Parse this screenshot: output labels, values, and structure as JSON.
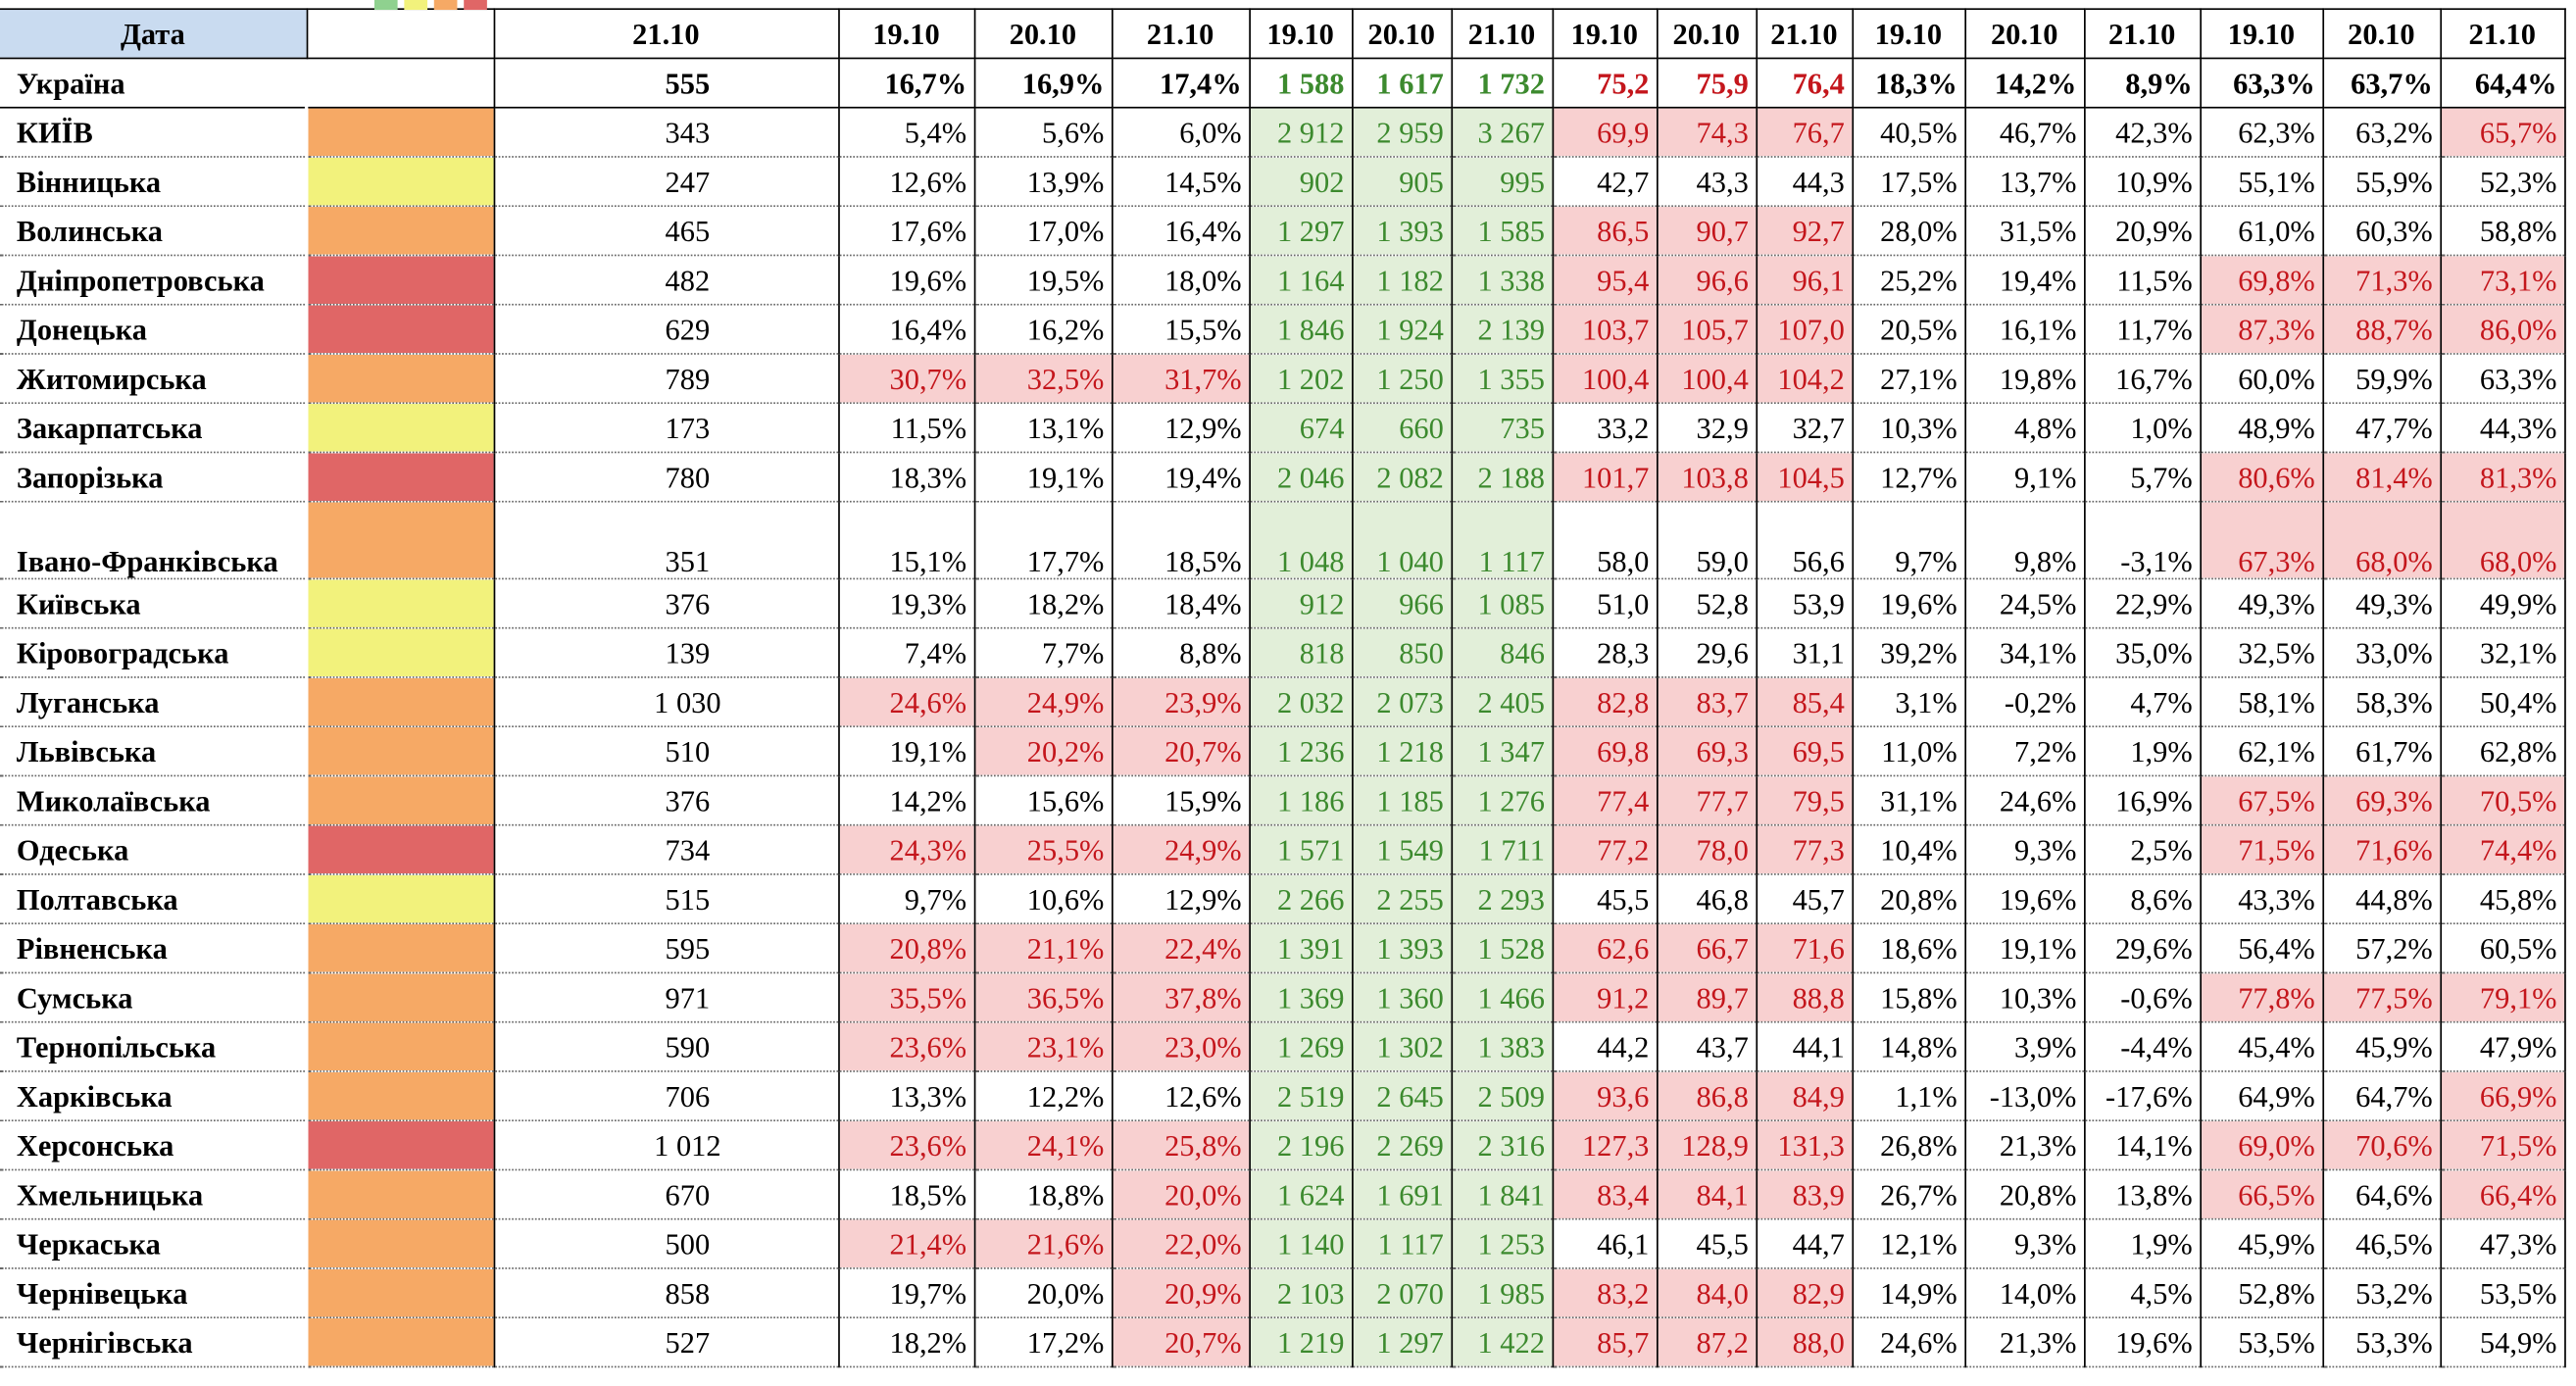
{
  "header": {
    "labels": [
      "Дата",
      "21.10",
      "19.10",
      "20.10",
      "21.10",
      "19.10",
      "20.10",
      "21.10",
      "19.10",
      "20.10",
      "21.10",
      "19.10",
      "20.10",
      "21.10",
      "19.10",
      "20.10",
      "21.10"
    ]
  },
  "total": {
    "name": "Україна",
    "cells": [
      "555",
      "16,7%",
      "16,9%",
      "17,4%",
      "1 588",
      "1 617",
      "1 732",
      "75,2",
      "75,9",
      "76,4",
      "18,3%",
      "14,2%",
      "8,9%",
      "63,3%",
      "63,7%",
      "64,4%"
    ]
  },
  "rows": [
    {
      "name": "КИЇВ",
      "level_color": "#f6a965",
      "cells": [
        "343",
        "5,4%",
        "5,6%",
        "6,0%",
        "2 912",
        "2 959",
        "3 267",
        "69,9",
        "74,3",
        "76,7",
        "40,5%",
        "46,7%",
        "42,3%",
        "62,3%",
        "63,2%",
        "65,7%"
      ],
      "highlight": [
        7,
        8,
        9,
        15
      ]
    },
    {
      "name": "Вінницька",
      "level_color": "#f2f27c",
      "cells": [
        "247",
        "12,6%",
        "13,9%",
        "14,5%",
        "902",
        "905",
        "995",
        "42,7",
        "43,3",
        "44,3",
        "17,5%",
        "13,7%",
        "10,9%",
        "55,1%",
        "55,9%",
        "52,3%"
      ],
      "highlight": []
    },
    {
      "name": "Волинська",
      "level_color": "#f6a965",
      "cells": [
        "465",
        "17,6%",
        "17,0%",
        "16,4%",
        "1 297",
        "1 393",
        "1 585",
        "86,5",
        "90,7",
        "92,7",
        "28,0%",
        "31,5%",
        "20,9%",
        "61,0%",
        "60,3%",
        "58,8%"
      ],
      "highlight": [
        7,
        8,
        9
      ]
    },
    {
      "name": "Дніпропетровська",
      "level_color": "#e06666",
      "cells": [
        "482",
        "19,6%",
        "19,5%",
        "18,0%",
        "1 164",
        "1 182",
        "1 338",
        "95,4",
        "96,6",
        "96,1",
        "25,2%",
        "19,4%",
        "11,5%",
        "69,8%",
        "71,3%",
        "73,1%"
      ],
      "highlight": [
        7,
        8,
        9,
        13,
        14,
        15
      ]
    },
    {
      "name": "Донецька",
      "level_color": "#e06666",
      "cells": [
        "629",
        "16,4%",
        "16,2%",
        "15,5%",
        "1 846",
        "1 924",
        "2 139",
        "103,7",
        "105,7",
        "107,0",
        "20,5%",
        "16,1%",
        "11,7%",
        "87,3%",
        "88,7%",
        "86,0%"
      ],
      "highlight": [
        7,
        8,
        9,
        13,
        14,
        15
      ]
    },
    {
      "name": "Житомирська",
      "level_color": "#f6a965",
      "cells": [
        "789",
        "30,7%",
        "32,5%",
        "31,7%",
        "1 202",
        "1 250",
        "1 355",
        "100,4",
        "100,4",
        "104,2",
        "27,1%",
        "19,8%",
        "16,7%",
        "60,0%",
        "59,9%",
        "63,3%"
      ],
      "highlight": [
        1,
        2,
        3,
        7,
        8,
        9
      ]
    },
    {
      "name": "Закарпатська",
      "level_color": "#f2f27c",
      "cells": [
        "173",
        "11,5%",
        "13,1%",
        "12,9%",
        "674",
        "660",
        "735",
        "33,2",
        "32,9",
        "32,7",
        "10,3%",
        "4,8%",
        "1,0%",
        "48,9%",
        "47,7%",
        "44,3%"
      ],
      "highlight": []
    },
    {
      "name": "Запорізька",
      "level_color": "#e06666",
      "cells": [
        "780",
        "18,3%",
        "19,1%",
        "19,4%",
        "2 046",
        "2 082",
        "2 188",
        "101,7",
        "103,8",
        "104,5",
        "12,7%",
        "9,1%",
        "5,7%",
        "80,6%",
        "81,4%",
        "81,3%"
      ],
      "highlight": [
        7,
        8,
        9,
        13,
        14,
        15
      ]
    },
    {
      "name": "Івано-Франківська",
      "level_color": "#f6a965",
      "cells": [
        "351",
        "15,1%",
        "17,7%",
        "18,5%",
        "1 048",
        "1 040",
        "1 117",
        "58,0",
        "59,0",
        "56,6",
        "9,7%",
        "9,8%",
        "-3,1%",
        "67,3%",
        "68,0%",
        "68,0%"
      ],
      "highlight": [
        13,
        14,
        15
      ]
    },
    {
      "name": "Київська",
      "level_color": "#f2f27c",
      "cells": [
        "376",
        "19,3%",
        "18,2%",
        "18,4%",
        "912",
        "966",
        "1 085",
        "51,0",
        "52,8",
        "53,9",
        "19,6%",
        "24,5%",
        "22,9%",
        "49,3%",
        "49,3%",
        "49,9%"
      ],
      "highlight": []
    },
    {
      "name": "Кіровоградська",
      "level_color": "#f2f27c",
      "cells": [
        "139",
        "7,4%",
        "7,7%",
        "8,8%",
        "818",
        "850",
        "846",
        "28,3",
        "29,6",
        "31,1",
        "39,2%",
        "34,1%",
        "35,0%",
        "32,5%",
        "33,0%",
        "32,1%"
      ],
      "highlight": []
    },
    {
      "name": "Луганська",
      "level_color": "#f6a965",
      "cells": [
        "1 030",
        "24,6%",
        "24,9%",
        "23,9%",
        "2 032",
        "2 073",
        "2 405",
        "82,8",
        "83,7",
        "85,4",
        "3,1%",
        "-0,2%",
        "4,7%",
        "58,1%",
        "58,3%",
        "50,4%"
      ],
      "highlight": [
        1,
        2,
        3,
        7,
        8,
        9
      ]
    },
    {
      "name": "Львівська",
      "level_color": "#f6a965",
      "cells": [
        "510",
        "19,1%",
        "20,2%",
        "20,7%",
        "1 236",
        "1 218",
        "1 347",
        "69,8",
        "69,3",
        "69,5",
        "11,0%",
        "7,2%",
        "1,9%",
        "62,1%",
        "61,7%",
        "62,8%"
      ],
      "highlight": [
        2,
        3,
        7,
        8,
        9
      ]
    },
    {
      "name": "Миколаївська",
      "level_color": "#f6a965",
      "cells": [
        "376",
        "14,2%",
        "15,6%",
        "15,9%",
        "1 186",
        "1 185",
        "1 276",
        "77,4",
        "77,7",
        "79,5",
        "31,1%",
        "24,6%",
        "16,9%",
        "67,5%",
        "69,3%",
        "70,5%"
      ],
      "highlight": [
        7,
        8,
        9,
        13,
        14,
        15
      ]
    },
    {
      "name": "Одеська",
      "level_color": "#e06666",
      "cells": [
        "734",
        "24,3%",
        "25,5%",
        "24,9%",
        "1 571",
        "1 549",
        "1 711",
        "77,2",
        "78,0",
        "77,3",
        "10,4%",
        "9,3%",
        "2,5%",
        "71,5%",
        "71,6%",
        "74,4%"
      ],
      "highlight": [
        1,
        2,
        3,
        7,
        8,
        9,
        13,
        14,
        15
      ]
    },
    {
      "name": "Полтавська",
      "level_color": "#f2f27c",
      "cells": [
        "515",
        "9,7%",
        "10,6%",
        "12,9%",
        "2 266",
        "2 255",
        "2 293",
        "45,5",
        "46,8",
        "45,7",
        "20,8%",
        "19,6%",
        "8,6%",
        "43,3%",
        "44,8%",
        "45,8%"
      ],
      "highlight": []
    },
    {
      "name": "Рівненська",
      "level_color": "#f6a965",
      "cells": [
        "595",
        "20,8%",
        "21,1%",
        "22,4%",
        "1 391",
        "1 393",
        "1 528",
        "62,6",
        "66,7",
        "71,6",
        "18,6%",
        "19,1%",
        "29,6%",
        "56,4%",
        "57,2%",
        "60,5%"
      ],
      "highlight": [
        1,
        2,
        3,
        7,
        8,
        9
      ]
    },
    {
      "name": "Сумська",
      "level_color": "#f6a965",
      "cells": [
        "971",
        "35,5%",
        "36,5%",
        "37,8%",
        "1 369",
        "1 360",
        "1 466",
        "91,2",
        "89,7",
        "88,8",
        "15,8%",
        "10,3%",
        "-0,6%",
        "77,8%",
        "77,5%",
        "79,1%"
      ],
      "highlight": [
        1,
        2,
        3,
        7,
        8,
        9,
        13,
        14,
        15
      ]
    },
    {
      "name": "Тернопільська",
      "level_color": "#f6a965",
      "cells": [
        "590",
        "23,6%",
        "23,1%",
        "23,0%",
        "1 269",
        "1 302",
        "1 383",
        "44,2",
        "43,7",
        "44,1",
        "14,8%",
        "3,9%",
        "-4,4%",
        "45,4%",
        "45,9%",
        "47,9%"
      ],
      "highlight": [
        1,
        2,
        3
      ]
    },
    {
      "name": "Харківська",
      "level_color": "#f6a965",
      "cells": [
        "706",
        "13,3%",
        "12,2%",
        "12,6%",
        "2 519",
        "2 645",
        "2 509",
        "93,6",
        "86,8",
        "84,9",
        "1,1%",
        "-13,0%",
        "-17,6%",
        "64,9%",
        "64,7%",
        "66,9%"
      ],
      "highlight": [
        7,
        8,
        9,
        15
      ]
    },
    {
      "name": "Херсонська",
      "level_color": "#e06666",
      "cells": [
        "1 012",
        "23,6%",
        "24,1%",
        "25,8%",
        "2 196",
        "2 269",
        "2 316",
        "127,3",
        "128,9",
        "131,3",
        "26,8%",
        "21,3%",
        "14,1%",
        "69,0%",
        "70,6%",
        "71,5%"
      ],
      "highlight": [
        1,
        2,
        3,
        7,
        8,
        9,
        13,
        14,
        15
      ]
    },
    {
      "name": "Хмельницька",
      "level_color": "#f6a965",
      "cells": [
        "670",
        "18,5%",
        "18,8%",
        "20,0%",
        "1 624",
        "1 691",
        "1 841",
        "83,4",
        "84,1",
        "83,9",
        "26,7%",
        "20,8%",
        "13,8%",
        "66,5%",
        "64,6%",
        "66,4%"
      ],
      "highlight": [
        3,
        7,
        8,
        9,
        13,
        15
      ]
    },
    {
      "name": "Черкаська",
      "level_color": "#f6a965",
      "cells": [
        "500",
        "21,4%",
        "21,6%",
        "22,0%",
        "1 140",
        "1 117",
        "1 253",
        "46,1",
        "45,5",
        "44,7",
        "12,1%",
        "9,3%",
        "1,9%",
        "45,9%",
        "46,5%",
        "47,3%"
      ],
      "highlight": [
        1,
        2,
        3
      ]
    },
    {
      "name": "Чернівецька",
      "level_color": "#f6a965",
      "cells": [
        "858",
        "19,7%",
        "20,0%",
        "20,9%",
        "2 103",
        "2 070",
        "1 985",
        "83,2",
        "84,0",
        "82,9",
        "14,9%",
        "14,0%",
        "4,5%",
        "52,8%",
        "53,2%",
        "53,5%"
      ],
      "highlight": [
        3,
        7,
        8,
        9
      ]
    },
    {
      "name": "Чернігівська",
      "level_color": "#f6a965",
      "cells": [
        "527",
        "18,2%",
        "17,2%",
        "20,7%",
        "1 219",
        "1 297",
        "1 422",
        "85,7",
        "87,2",
        "88,0",
        "24,6%",
        "21,3%",
        "19,6%",
        "53,5%",
        "53,3%",
        "54,9%"
      ],
      "highlight": [
        3,
        7,
        8,
        9
      ]
    }
  ]
}
